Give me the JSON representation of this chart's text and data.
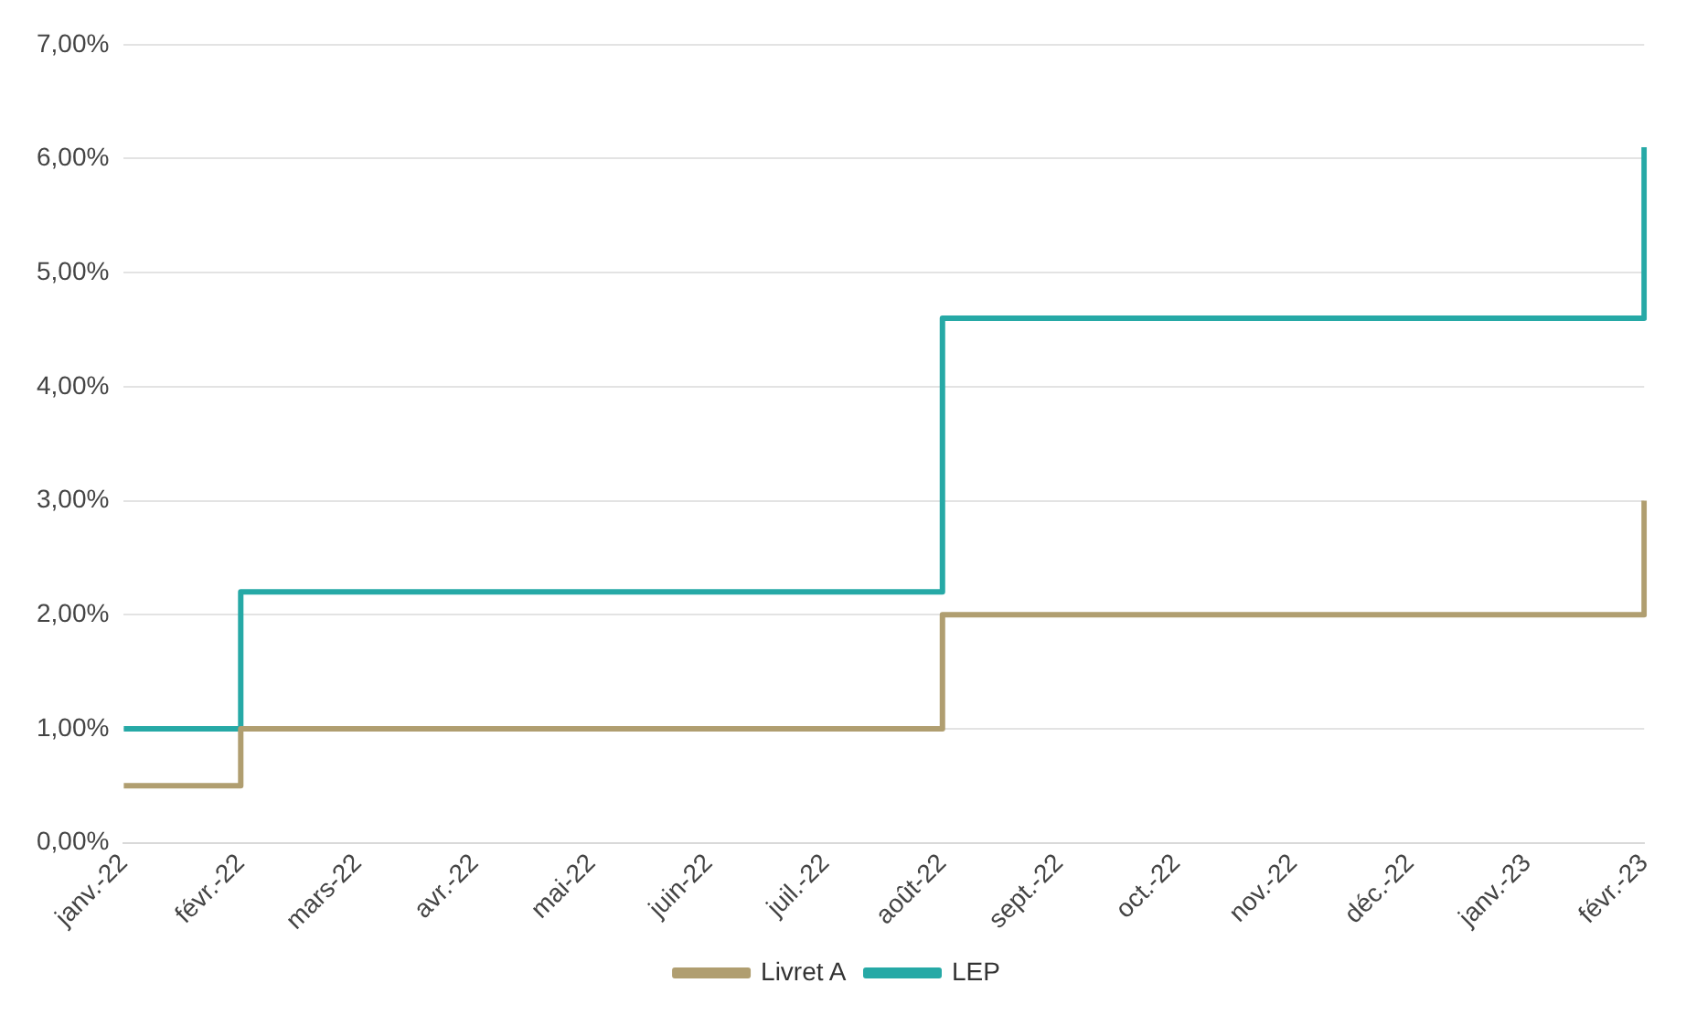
{
  "chart_data": {
    "type": "step",
    "categories": [
      "janv.-22",
      "févr.-22",
      "mars-22",
      "avr.-22",
      "mai-22",
      "juin-22",
      "juil.-22",
      "août-22",
      "sept.-22",
      "oct.-22",
      "nov.-22",
      "déc.-22",
      "janv.-23",
      "févr.-23"
    ],
    "series": [
      {
        "name": "Livret A",
        "color": "#b09e70",
        "values": [
          0.5,
          1,
          1,
          1,
          1,
          1,
          1,
          2,
          2,
          2,
          2,
          2,
          2,
          3
        ]
      },
      {
        "name": "LEP",
        "color": "#26a9a6",
        "values": [
          1,
          2.2,
          2.2,
          2.2,
          2.2,
          2.2,
          2.2,
          4.6,
          4.6,
          4.6,
          4.6,
          4.6,
          4.6,
          6.1
        ]
      }
    ],
    "ylim": [
      0,
      7
    ],
    "yticks": [
      {
        "value": 0,
        "label": "0,00%"
      },
      {
        "value": 1,
        "label": "1,00%"
      },
      {
        "value": 2,
        "label": "2,00%"
      },
      {
        "value": 3,
        "label": "3,00%"
      },
      {
        "value": 4,
        "label": "4,00%"
      },
      {
        "value": 5,
        "label": "5,00%"
      },
      {
        "value": 6,
        "label": "6,00%"
      },
      {
        "value": 7,
        "label": "7,00%"
      }
    ],
    "grid": "y",
    "legend": "bottom",
    "line_style": "solid",
    "marker": "none"
  }
}
